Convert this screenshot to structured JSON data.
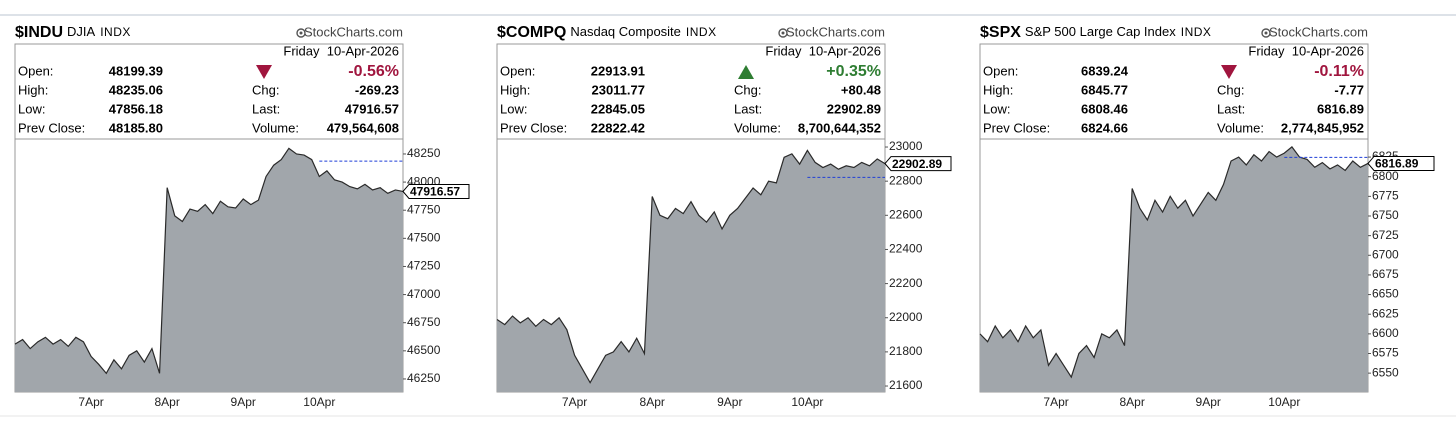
{
  "chart_data": [
    {
      "type": "area",
      "symbol": "$INDU",
      "name": "DJIA",
      "exchange": "INDX",
      "source": "StockCharts.com",
      "date": "Friday  10-Apr-2026",
      "quote_left": [
        [
          "Open:",
          "48199.39"
        ],
        [
          "High:",
          "48235.06"
        ],
        [
          "Low:",
          "47856.18"
        ],
        [
          "Prev Close:",
          "48185.80"
        ]
      ],
      "quote_right": [
        [
          "Chg:",
          "-269.23"
        ],
        [
          "Last:",
          "47916.57"
        ],
        [
          "Volume:",
          "479,564,608"
        ]
      ],
      "change_pct": "-0.56%",
      "change_direction": "down",
      "change_color": "#a0153e",
      "color": "#a1a6ab",
      "line_color": "#2a2a2a",
      "reference_color": "#1f3fd6",
      "categories": [
        null,
        null,
        null,
        null,
        null,
        null,
        null,
        null,
        null,
        null,
        "7Apr",
        null,
        null,
        null,
        null,
        null,
        null,
        null,
        null,
        null,
        "8Apr",
        null,
        null,
        null,
        null,
        null,
        null,
        null,
        null,
        null,
        "9Apr",
        null,
        null,
        null,
        null,
        null,
        null,
        null,
        null,
        null,
        "10Apr",
        null,
        null,
        null,
        null,
        null,
        null,
        null,
        null,
        null,
        null,
        null
      ],
      "values": [
        46560,
        46600,
        46520,
        46580,
        46620,
        46560,
        46600,
        46540,
        46620,
        46580,
        46450,
        46380,
        46300,
        46420,
        46340,
        46460,
        46500,
        46400,
        46520,
        46300,
        47950,
        47700,
        47650,
        47760,
        47740,
        47800,
        47720,
        47830,
        47780,
        47770,
        47850,
        47800,
        47840,
        48050,
        48150,
        48200,
        48300,
        48250,
        48240,
        48200,
        48050,
        48100,
        48020,
        48000,
        47960,
        47940,
        47980,
        47930,
        47950,
        47900,
        47930,
        47916.57
      ],
      "ylim": [
        46134,
        48383
      ],
      "yticks": [
        46250,
        46500,
        46750,
        47000,
        47250,
        47500,
        47750,
        48000,
        48250
      ],
      "reference_line": 48185.8,
      "last_label": {
        "value": 47916.57,
        "label": "47916.57"
      }
    },
    {
      "type": "area",
      "symbol": "$COMPQ",
      "name": "Nasdaq Composite",
      "exchange": "INDX",
      "source": "StockCharts.com",
      "date": "Friday  10-Apr-2026",
      "quote_left": [
        [
          "Open:",
          "22913.91"
        ],
        [
          "High:",
          "23011.77"
        ],
        [
          "Low:",
          "22845.05"
        ],
        [
          "Prev Close:",
          "22822.42"
        ]
      ],
      "quote_right": [
        [
          "Chg:",
          "+80.48"
        ],
        [
          "Last:",
          "22902.89"
        ],
        [
          "Volume:",
          "8,700,644,352"
        ]
      ],
      "change_pct": "+0.35%",
      "change_direction": "up",
      "change_color": "#2e7d32",
      "color": "#a1a6ab",
      "line_color": "#2a2a2a",
      "reference_color": "#1f3fd6",
      "categories": [
        null,
        null,
        null,
        null,
        null,
        null,
        null,
        null,
        null,
        null,
        "7Apr",
        null,
        null,
        null,
        null,
        null,
        null,
        null,
        null,
        null,
        "8Apr",
        null,
        null,
        null,
        null,
        null,
        null,
        null,
        null,
        null,
        "9Apr",
        null,
        null,
        null,
        null,
        null,
        null,
        null,
        null,
        null,
        "10Apr",
        null,
        null,
        null,
        null,
        null,
        null,
        null,
        null,
        null,
        null
      ],
      "values": [
        21990,
        21960,
        22010,
        21970,
        22000,
        21950,
        21990,
        21960,
        22000,
        21930,
        21780,
        21700,
        21620,
        21700,
        21780,
        21800,
        21860,
        21800,
        21880,
        21790,
        22710,
        22600,
        22580,
        22640,
        22610,
        22680,
        22600,
        22560,
        22620,
        22520,
        22600,
        22640,
        22700,
        22760,
        22720,
        22800,
        22790,
        22940,
        22960,
        22900,
        22980,
        22910,
        22880,
        22900,
        22870,
        22890,
        22880,
        22910,
        22890,
        22930,
        22902.89
      ],
      "ylim": [
        21565,
        23047
      ],
      "yticks": [
        21600,
        21800,
        22000,
        22200,
        22400,
        22600,
        22800,
        23000
      ],
      "reference_line": 22822.42,
      "last_label": {
        "value": 22902.89,
        "label": "22902.89"
      }
    },
    {
      "type": "area",
      "symbol": "$SPX",
      "name": "S&P 500 Large Cap Index",
      "exchange": "INDX",
      "source": "StockCharts.com",
      "date": "Friday  10-Apr-2026",
      "quote_left": [
        [
          "Open:",
          "6839.24"
        ],
        [
          "High:",
          "6845.77"
        ],
        [
          "Low:",
          "6808.46"
        ],
        [
          "Prev Close:",
          "6824.66"
        ]
      ],
      "quote_right": [
        [
          "Chg:",
          "-7.77"
        ],
        [
          "Last:",
          "6816.89"
        ],
        [
          "Volume:",
          "2,774,845,952"
        ]
      ],
      "change_pct": "-0.11%",
      "change_direction": "down",
      "change_color": "#a0153e",
      "color": "#a1a6ab",
      "line_color": "#2a2a2a",
      "reference_color": "#1f3fd6",
      "categories": [
        null,
        null,
        null,
        null,
        null,
        null,
        null,
        null,
        null,
        null,
        "7Apr",
        null,
        null,
        null,
        null,
        null,
        null,
        null,
        null,
        null,
        "8Apr",
        null,
        null,
        null,
        null,
        null,
        null,
        null,
        null,
        null,
        "9Apr",
        null,
        null,
        null,
        null,
        null,
        null,
        null,
        null,
        null,
        "10Apr",
        null,
        null,
        null,
        null,
        null,
        null,
        null,
        null,
        null,
        null,
        null
      ],
      "values": [
        6600,
        6590,
        6610,
        6595,
        6605,
        6590,
        6610,
        6595,
        6605,
        6560,
        6575,
        6560,
        6545,
        6575,
        6585,
        6570,
        6600,
        6595,
        6605,
        6585,
        6785,
        6760,
        6745,
        6770,
        6755,
        6775,
        6760,
        6770,
        6750,
        6765,
        6780,
        6770,
        6790,
        6820,
        6825,
        6815,
        6828,
        6820,
        6832,
        6825,
        6830,
        6838,
        6825,
        6822,
        6812,
        6818,
        6810,
        6815,
        6808,
        6820,
        6812,
        6816.89
      ],
      "ylim": [
        6526,
        6848
      ],
      "yticks": [
        6550,
        6575,
        6600,
        6625,
        6650,
        6675,
        6700,
        6725,
        6750,
        6775,
        6800,
        6825
      ],
      "reference_line": 6824.66,
      "last_label": {
        "value": 6816.89,
        "label": "6816.89"
      }
    }
  ]
}
